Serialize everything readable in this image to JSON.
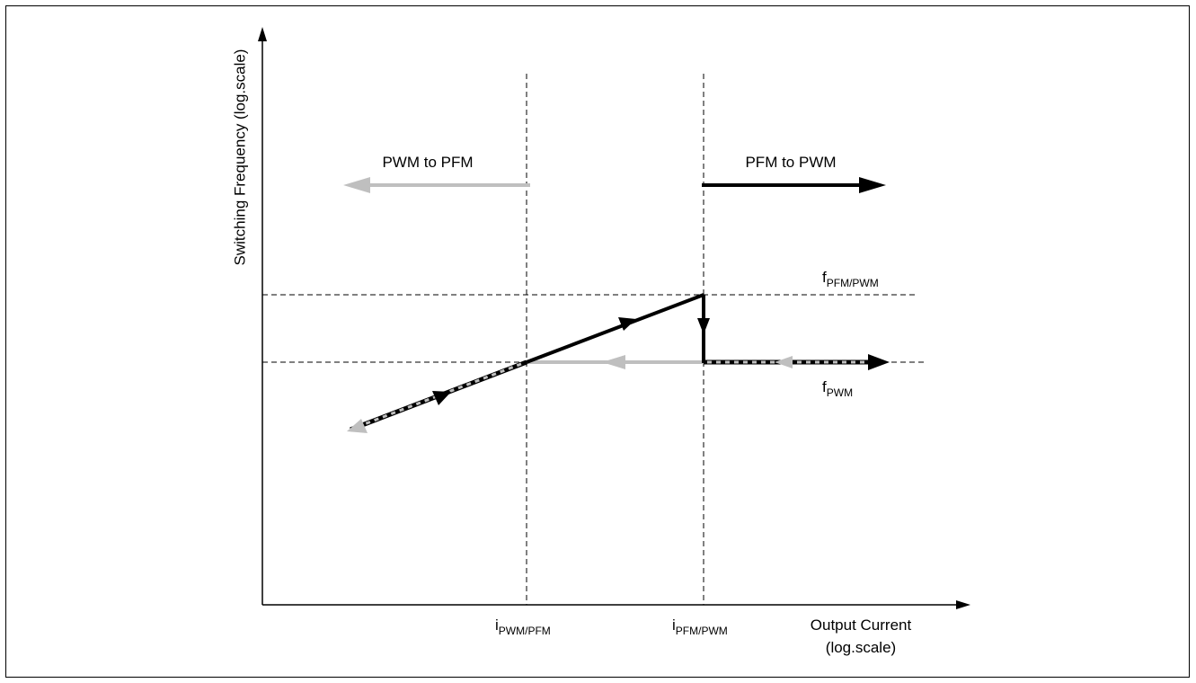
{
  "axes": {
    "y_label": "Switching Frequency (log.scale)",
    "x_label_line1": "Output Current",
    "x_label_line2": "(log.scale)"
  },
  "annotations": {
    "pwm_to_pfm": "PWM to PFM",
    "pfm_to_pwm": "PFM to PWM"
  },
  "levels": {
    "f_upper": {
      "main": "f",
      "sub": "PFM/PWM"
    },
    "f_lower": {
      "main": "f",
      "sub": "PWM"
    }
  },
  "thresholds": {
    "i_left": {
      "main": "i",
      "sub": "PWM/PFM"
    },
    "i_right": {
      "main": "i",
      "sub": "PFM/PWM"
    }
  },
  "colors": {
    "light_path": "#bfbfbf",
    "dark_path": "#000000",
    "guide": "#000000"
  }
}
